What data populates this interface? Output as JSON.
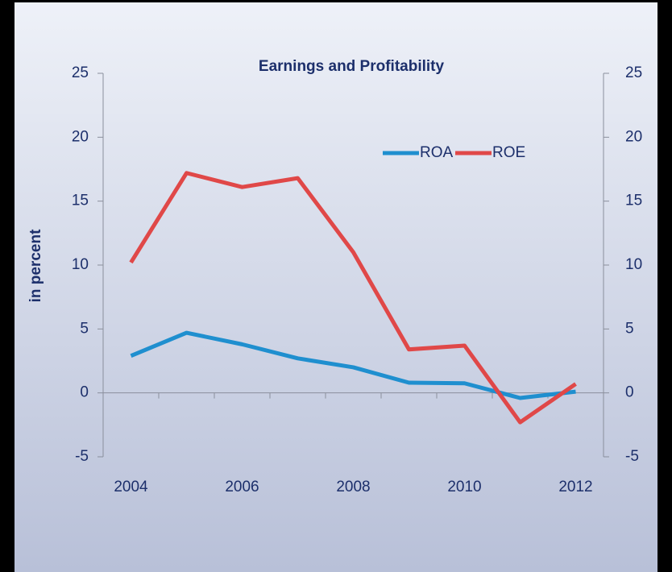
{
  "chart_data": {
    "type": "line",
    "title": "Earnings and Profitability",
    "y_label": "in percent",
    "x": [
      2004,
      2005,
      2006,
      2007,
      2008,
      2009,
      2010,
      2011,
      2012
    ],
    "xlim": [
      2003.5,
      2012.5
    ],
    "xticks": [
      2004,
      2006,
      2008,
      2010,
      2012
    ],
    "ylim": [
      -5,
      25
    ],
    "yticks": [
      -5,
      0,
      5,
      10,
      15,
      20,
      25
    ],
    "y2lim": [
      -5,
      25
    ],
    "y2ticks": [
      -5,
      0,
      5,
      10,
      15,
      20,
      25
    ],
    "legend": "top-right",
    "series": [
      {
        "name": "ROA",
        "color": "#1f8fcf",
        "values": [
          2.9,
          4.7,
          3.8,
          2.7,
          2.0,
          0.8,
          0.75,
          -0.4,
          0.1
        ]
      },
      {
        "name": "ROE",
        "color": "#e04848",
        "values": [
          10.2,
          17.2,
          16.1,
          16.8,
          11.0,
          3.4,
          3.7,
          -2.3,
          0.7
        ]
      }
    ]
  }
}
